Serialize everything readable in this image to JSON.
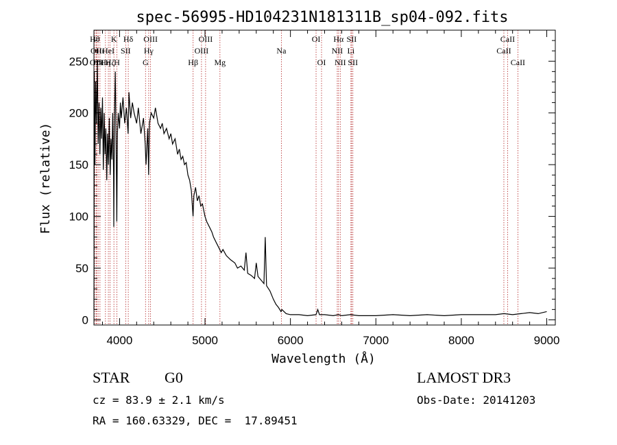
{
  "info": {
    "object_type": "STAR",
    "subclass": "G0",
    "survey": "LAMOST DR3",
    "cz": "cz = 83.9 ± 2.1 km/s",
    "obs_date": "Obs-Date: 20141203",
    "coords": "RA = 160.63329, DEC =  17.89451"
  },
  "chart_data": {
    "type": "line",
    "title": "spec-56995-HD104231N181311B_sp04-092.fits",
    "xlabel": "Wavelength (Å)",
    "ylabel": "Flux (relative)",
    "xlim": [
      3700,
      9100
    ],
    "ylim": [
      -5,
      280
    ],
    "x_ticks": [
      4000,
      5000,
      6000,
      7000,
      8000,
      9000
    ],
    "y_ticks": [
      0,
      50,
      100,
      150,
      200,
      250
    ],
    "grid": false,
    "colors": {
      "spectrum": "#000000",
      "line_marker": "#b22222"
    },
    "series": [
      {
        "points": [
          [
            3700,
            10
          ],
          [
            3705,
            240
          ],
          [
            3712,
            150
          ],
          [
            3720,
            230
          ],
          [
            3730,
            190
          ],
          [
            3740,
            250
          ],
          [
            3750,
            170
          ],
          [
            3760,
            210
          ],
          [
            3770,
            160
          ],
          [
            3780,
            205
          ],
          [
            3790,
            175
          ],
          [
            3800,
            215
          ],
          [
            3810,
            145
          ],
          [
            3820,
            200
          ],
          [
            3830,
            160
          ],
          [
            3840,
            185
          ],
          [
            3850,
            135
          ],
          [
            3860,
            180
          ],
          [
            3870,
            150
          ],
          [
            3880,
            195
          ],
          [
            3890,
            140
          ],
          [
            3900,
            175
          ],
          [
            3910,
            155
          ],
          [
            3920,
            200
          ],
          [
            3930,
            140
          ],
          [
            3933,
            90
          ],
          [
            3940,
            195
          ],
          [
            3950,
            240
          ],
          [
            3960,
            170
          ],
          [
            3968,
            95
          ],
          [
            3975,
            180
          ],
          [
            3985,
            200
          ],
          [
            4000,
            185
          ],
          [
            4010,
            210
          ],
          [
            4020,
            195
          ],
          [
            4040,
            215
          ],
          [
            4060,
            190
          ],
          [
            4080,
            205
          ],
          [
            4100,
            180
          ],
          [
            4110,
            220
          ],
          [
            4130,
            195
          ],
          [
            4150,
            210
          ],
          [
            4170,
            200
          ],
          [
            4200,
            190
          ],
          [
            4220,
            205
          ],
          [
            4250,
            180
          ],
          [
            4280,
            195
          ],
          [
            4300,
            170
          ],
          [
            4310,
            150
          ],
          [
            4330,
            185
          ],
          [
            4340,
            140
          ],
          [
            4350,
            190
          ],
          [
            4370,
            200
          ],
          [
            4400,
            195
          ],
          [
            4420,
            205
          ],
          [
            4450,
            190
          ],
          [
            4480,
            185
          ],
          [
            4500,
            190
          ],
          [
            4520,
            180
          ],
          [
            4550,
            185
          ],
          [
            4580,
            175
          ],
          [
            4600,
            180
          ],
          [
            4620,
            170
          ],
          [
            4650,
            175
          ],
          [
            4680,
            160
          ],
          [
            4700,
            165
          ],
          [
            4720,
            155
          ],
          [
            4740,
            158
          ],
          [
            4760,
            150
          ],
          [
            4780,
            152
          ],
          [
            4800,
            140
          ],
          [
            4820,
            135
          ],
          [
            4840,
            125
          ],
          [
            4860,
            100
          ],
          [
            4870,
            120
          ],
          [
            4890,
            128
          ],
          [
            4910,
            115
          ],
          [
            4930,
            120
          ],
          [
            4950,
            110
          ],
          [
            4970,
            112
          ],
          [
            5000,
            100
          ],
          [
            5020,
            95
          ],
          [
            5050,
            90
          ],
          [
            5080,
            85
          ],
          [
            5100,
            80
          ],
          [
            5130,
            75
          ],
          [
            5160,
            70
          ],
          [
            5190,
            65
          ],
          [
            5210,
            68
          ],
          [
            5250,
            62
          ],
          [
            5300,
            58
          ],
          [
            5350,
            55
          ],
          [
            5380,
            50
          ],
          [
            5420,
            52
          ],
          [
            5460,
            48
          ],
          [
            5480,
            65
          ],
          [
            5500,
            45
          ],
          [
            5540,
            43
          ],
          [
            5580,
            40
          ],
          [
            5600,
            55
          ],
          [
            5620,
            42
          ],
          [
            5660,
            38
          ],
          [
            5690,
            35
          ],
          [
            5705,
            80
          ],
          [
            5720,
            33
          ],
          [
            5760,
            28
          ],
          [
            5800,
            20
          ],
          [
            5830,
            15
          ],
          [
            5860,
            12
          ],
          [
            5890,
            8
          ],
          [
            5900,
            10
          ],
          [
            5950,
            6
          ],
          [
            6000,
            5
          ],
          [
            6100,
            5
          ],
          [
            6200,
            4
          ],
          [
            6300,
            5
          ],
          [
            6320,
            10
          ],
          [
            6340,
            5
          ],
          [
            6400,
            5
          ],
          [
            6500,
            4
          ],
          [
            6563,
            5
          ],
          [
            6600,
            4
          ],
          [
            6700,
            5
          ],
          [
            6800,
            4
          ],
          [
            7000,
            4
          ],
          [
            7200,
            5
          ],
          [
            7400,
            4
          ],
          [
            7600,
            5
          ],
          [
            7800,
            4
          ],
          [
            8000,
            5
          ],
          [
            8200,
            5
          ],
          [
            8400,
            5
          ],
          [
            8500,
            6
          ],
          [
            8600,
            5
          ],
          [
            8700,
            6
          ],
          [
            8800,
            7
          ],
          [
            8900,
            6
          ],
          [
            9000,
            8
          ]
        ]
      }
    ],
    "line_markers": [
      {
        "wavelength": 3711,
        "label": "Hθ",
        "row": 1
      },
      {
        "wavelength": 3727,
        "label": "OII",
        "row": 2
      },
      {
        "wavelength": 3734,
        "label": "OIII",
        "row": 3
      },
      {
        "wavelength": 3750,
        "label": "Hκ",
        "row": 3
      },
      {
        "wavelength": 3771,
        "label": "Hι",
        "row": 2
      },
      {
        "wavelength": 3835,
        "label": "Hη",
        "row": 3
      },
      {
        "wavelength": 3869,
        "label": "HeI",
        "row": 2
      },
      {
        "wavelength": 3889,
        "label": "Hζ",
        "row": 3
      },
      {
        "wavelength": 3934,
        "label": "K",
        "row": 1
      },
      {
        "wavelength": 3969,
        "label": "H",
        "row": 3
      },
      {
        "wavelength": 4072,
        "label": "SII",
        "row": 2
      },
      {
        "wavelength": 4102,
        "label": "Hδ",
        "row": 1
      },
      {
        "wavelength": 4304,
        "label": "G",
        "row": 3
      },
      {
        "wavelength": 4341,
        "label": "Hγ",
        "row": 2
      },
      {
        "wavelength": 4363,
        "label": "OIII",
        "row": 1
      },
      {
        "wavelength": 4861,
        "label": "Hβ",
        "row": 3
      },
      {
        "wavelength": 4959,
        "label": "OIII",
        "row": 2
      },
      {
        "wavelength": 5007,
        "label": "OIII",
        "row": 1
      },
      {
        "wavelength": 5175,
        "label": "Mg",
        "row": 3
      },
      {
        "wavelength": 5894,
        "label": "Na",
        "row": 2
      },
      {
        "wavelength": 6300,
        "label": "OI",
        "row": 1
      },
      {
        "wavelength": 6364,
        "label": "OI",
        "row": 3
      },
      {
        "wavelength": 6548,
        "label": "NII",
        "row": 2
      },
      {
        "wavelength": 6563,
        "label": "Hα",
        "row": 1
      },
      {
        "wavelength": 6583,
        "label": "NII",
        "row": 3
      },
      {
        "wavelength": 6708,
        "label": "Li",
        "row": 2
      },
      {
        "wavelength": 6716,
        "label": "SII",
        "row": 1
      },
      {
        "wavelength": 6731,
        "label": "SII",
        "row": 3
      },
      {
        "wavelength": 8498,
        "label": "CaII",
        "row": 2
      },
      {
        "wavelength": 8542,
        "label": "CaII",
        "row": 1
      },
      {
        "wavelength": 8662,
        "label": "CaII",
        "row": 3
      }
    ]
  }
}
